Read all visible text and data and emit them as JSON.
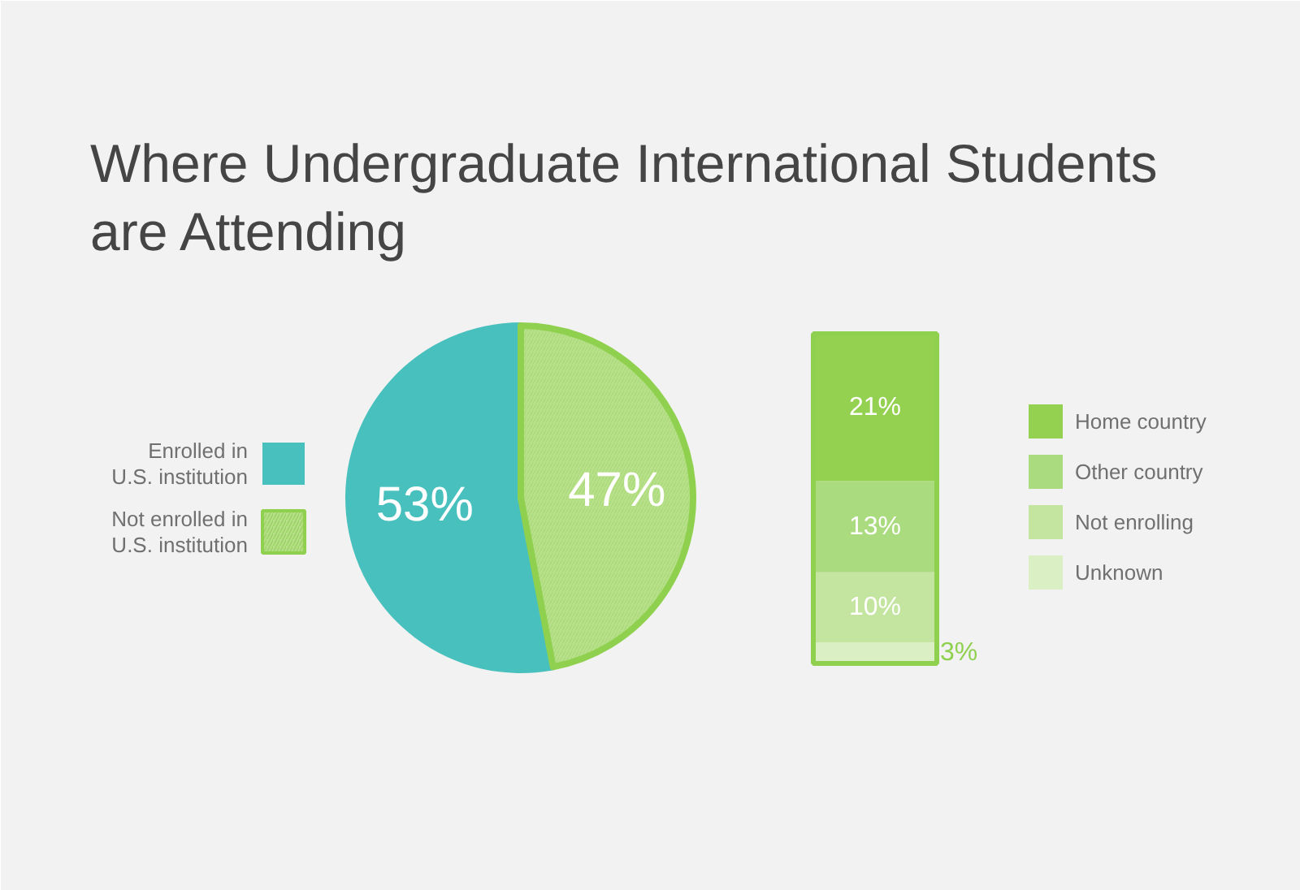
{
  "chart_data": [
    {
      "type": "pie",
      "title": "Where Undergraduate International Students are Attending",
      "categories": [
        "Enrolled in U.S. institution",
        "Not enrolled in U.S. institution"
      ],
      "values": [
        53,
        47
      ],
      "colors": [
        "#48c0bd",
        "#b8e08a"
      ],
      "value_labels": [
        "53%",
        "47%"
      ],
      "legend": "left"
    },
    {
      "type": "bar",
      "stacked": true,
      "categories": [
        null
      ],
      "legend": "right",
      "series": [
        {
          "name": "Unknown",
          "color": "#daefc4",
          "values": [
            3
          ],
          "value_labels": [
            "3%"
          ]
        },
        {
          "name": "Not enrolling",
          "color": "#c3e5a0",
          "values": [
            10
          ],
          "value_labels": [
            "10%"
          ]
        },
        {
          "name": "Other country",
          "color": "#aadb7e",
          "values": [
            13
          ],
          "value_labels": [
            "13%"
          ]
        },
        {
          "name": "Home country",
          "color": "#94d151",
          "values": [
            21
          ],
          "value_labels": [
            "21%"
          ]
        }
      ]
    }
  ]
}
